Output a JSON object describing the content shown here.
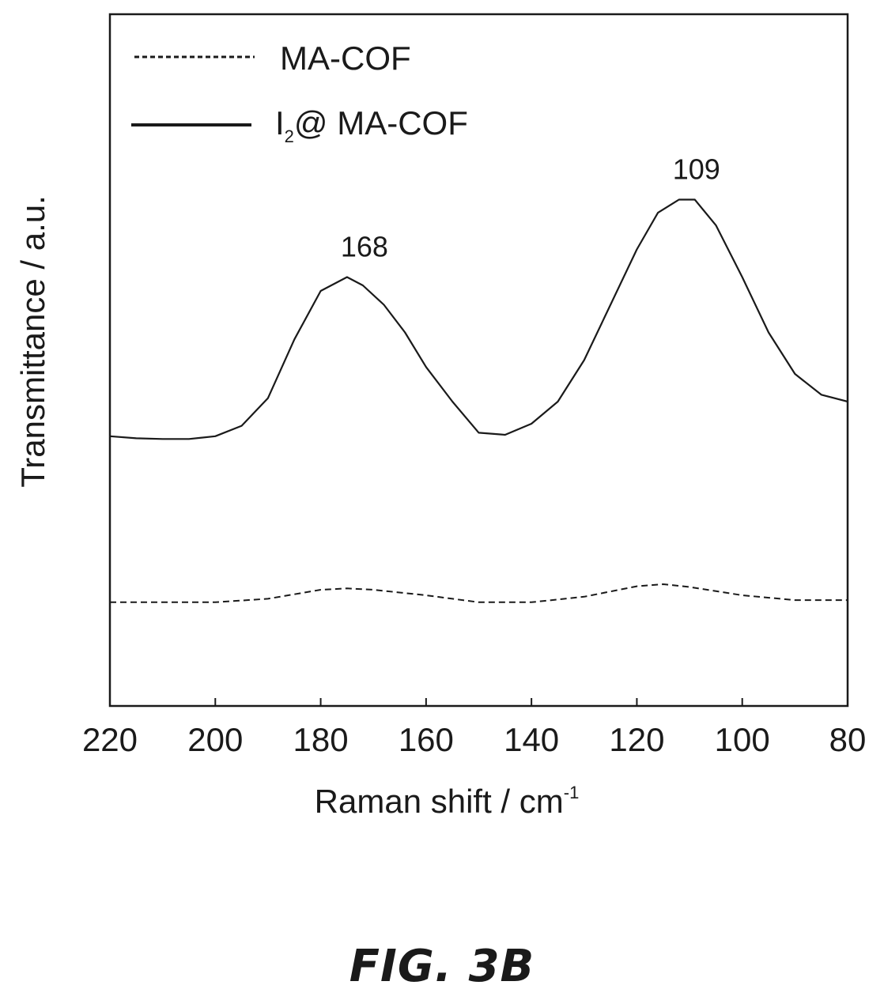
{
  "figure_label": "FIG. 3B",
  "chart_data": {
    "type": "line",
    "xlabel": "Raman shift / cm",
    "xlabel_superscript": "-1",
    "ylabel": "Transmittance / a.u.",
    "xlim": [
      220,
      80
    ],
    "ylim": [
      0,
      1
    ],
    "x_reversed": true,
    "yticks_shown": false,
    "grid": false,
    "legend_position": "top-left",
    "xticks": [
      220,
      200,
      180,
      160,
      140,
      120,
      100,
      80
    ],
    "series": [
      {
        "name": "MA-COF",
        "style": "dashed",
        "color": "#1a1a1a",
        "x": [
          220,
          210,
          200,
          190,
          180,
          175,
          170,
          160,
          150,
          140,
          130,
          120,
          115,
          110,
          100,
          90,
          80
        ],
        "y": [
          0.15,
          0.15,
          0.15,
          0.155,
          0.168,
          0.17,
          0.168,
          0.16,
          0.15,
          0.15,
          0.158,
          0.173,
          0.176,
          0.172,
          0.16,
          0.153,
          0.153
        ]
      },
      {
        "name": "I₂@ MA-COF",
        "legend_main": "I",
        "legend_sub": "2",
        "legend_rest": "@ MA-COF",
        "style": "solid",
        "color": "#1a1a1a",
        "x": [
          220,
          215,
          210,
          205,
          200,
          195,
          190,
          185,
          180,
          175,
          172,
          168,
          164,
          160,
          155,
          150,
          145,
          140,
          135,
          130,
          125,
          120,
          116,
          112,
          109,
          105,
          100,
          95,
          90,
          85,
          80
        ],
        "y": [
          0.39,
          0.387,
          0.386,
          0.386,
          0.39,
          0.405,
          0.445,
          0.53,
          0.6,
          0.62,
          0.608,
          0.58,
          0.54,
          0.49,
          0.44,
          0.395,
          0.392,
          0.408,
          0.44,
          0.5,
          0.58,
          0.66,
          0.713,
          0.732,
          0.732,
          0.695,
          0.62,
          0.54,
          0.48,
          0.45,
          0.44
        ]
      }
    ],
    "annotations": [
      {
        "text": "168",
        "x": 172,
        "y": 0.62
      },
      {
        "text": "109",
        "x": 109,
        "y": 0.732
      }
    ]
  }
}
